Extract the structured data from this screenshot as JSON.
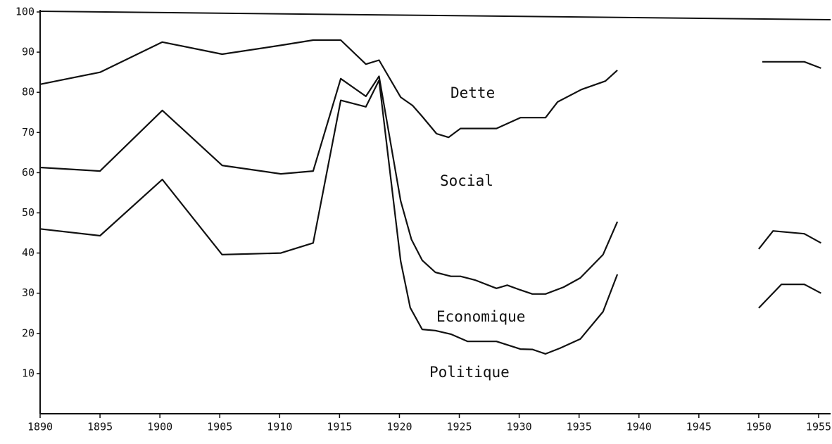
{
  "chart_data": {
    "type": "line",
    "annotations": [
      "Dette",
      "Social",
      "Economique",
      "Politique"
    ],
    "xlim": [
      1890,
      1956
    ],
    "xticks": [
      1890,
      1895,
      1900,
      1905,
      1910,
      1915,
      1920,
      1925,
      1930,
      1935,
      1940,
      1945,
      1950,
      1955
    ],
    "ylim": [
      0,
      100
    ],
    "yticks": [
      10,
      20,
      30,
      40,
      50,
      60,
      70,
      80,
      90,
      100
    ],
    "grid": false,
    "series": [
      {
        "color": "#111111",
        "x": [
          1890,
          1895,
          1900.2,
          1905.2,
          1910.1,
          1912.8,
          1915.1,
          1917.2,
          1918.3,
          1920.1,
          1921.1,
          1921.9,
          1923.1,
          1924.1,
          1925.1,
          1928.1,
          1930.1,
          1932.2,
          1933.2,
          1935.2,
          1937.2,
          1938.2,
          null,
          1950.3,
          1953.8,
          1955.2
        ],
        "values": [
          82,
          85,
          92.5,
          89.5,
          91.7,
          93,
          93,
          87,
          88,
          78.8,
          76.7,
          74,
          69.7,
          68.8,
          71,
          71,
          73.7,
          73.7,
          77.6,
          80.7,
          82.8,
          85.5,
          null,
          87.6,
          87.6,
          86
        ]
      },
      {
        "color": "#111111",
        "x": [
          1890,
          1895,
          1900.2,
          1905.2,
          1910.1,
          1912.8,
          1915.1,
          1917.2,
          1918.3,
          1920.1,
          1921,
          1921.9,
          1923,
          1924.3,
          1925.1,
          1926.3,
          1928.1,
          1929,
          1930.1,
          1931.1,
          1932.2,
          1933.7,
          1935.1,
          1937,
          1938.2,
          null,
          1950,
          1951.2,
          1953.8,
          1955.2
        ],
        "values": [
          61.3,
          60.4,
          75.5,
          61.8,
          59.7,
          60.4,
          83.4,
          79,
          84,
          53,
          43.4,
          38.2,
          35.2,
          34.2,
          34.2,
          33.3,
          31.2,
          32,
          30.8,
          29.8,
          29.8,
          31.5,
          33.8,
          39.6,
          47.8,
          null,
          41,
          45.5,
          44.8,
          42.5
        ]
      },
      {
        "color": "#111111",
        "x": [
          1890,
          1895,
          1900.2,
          1905.2,
          1910.1,
          1912.8,
          1915.1,
          1917.2,
          1918.3,
          1920.1,
          1920.9,
          1921.9,
          1923,
          1924.3,
          1925.7,
          1928.1,
          1930.1,
          1931.1,
          1932.2,
          1933.4,
          1935.1,
          1937,
          1938.2,
          null,
          1950,
          1951.9,
          1953.8,
          1955.2
        ],
        "values": [
          46,
          44.3,
          58.3,
          39.6,
          40,
          42.5,
          78,
          76.4,
          83,
          38,
          26.4,
          21,
          20.7,
          19.8,
          18,
          18,
          16.1,
          16,
          14.9,
          16.3,
          18.6,
          25.4,
          34.7,
          null,
          26.3,
          32.2,
          32.2,
          30
        ]
      }
    ]
  }
}
